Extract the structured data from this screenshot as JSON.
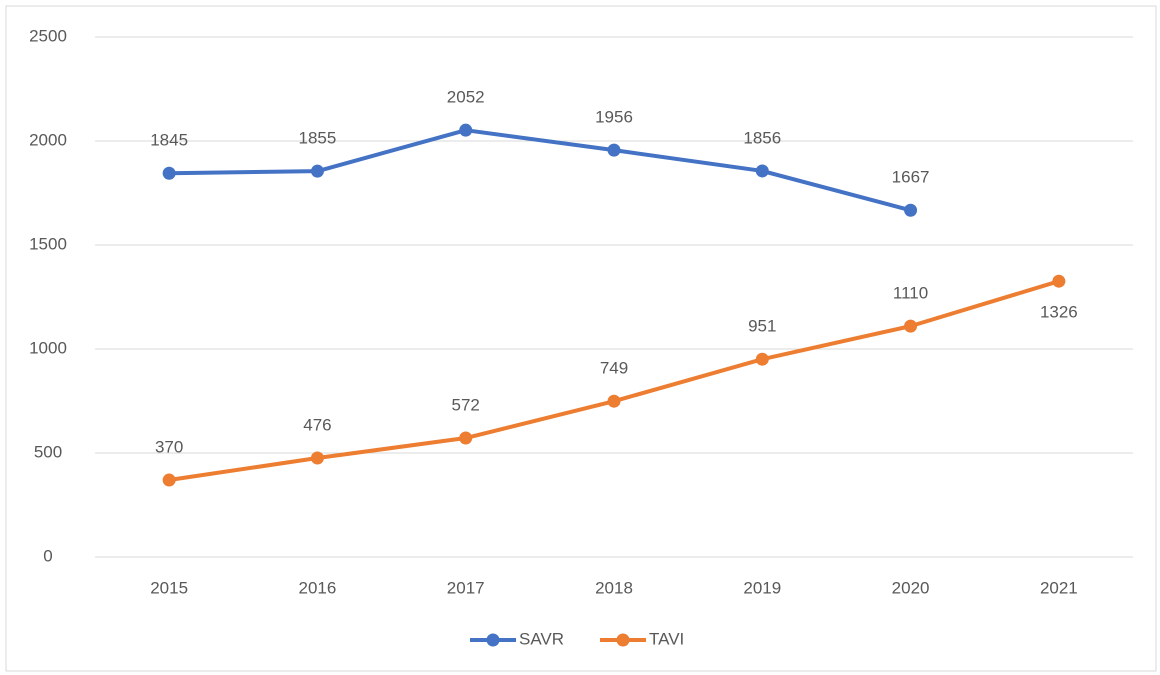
{
  "chart_data": {
    "type": "line",
    "categories": [
      "2015",
      "2016",
      "2017",
      "2018",
      "2019",
      "2020",
      "2021"
    ],
    "series": [
      {
        "name": "SAVR",
        "color": "#4472c4",
        "values": [
          1845,
          1855,
          2052,
          1956,
          1856,
          1667,
          null
        ]
      },
      {
        "name": "TAVI",
        "color": "#ed7d31",
        "values": [
          370,
          476,
          572,
          749,
          951,
          1110,
          1326
        ]
      }
    ],
    "ylim": [
      0,
      2500
    ],
    "yticks": [
      0,
      500,
      1000,
      1500,
      2000,
      2500
    ],
    "grid": true,
    "legend": "bottom"
  }
}
